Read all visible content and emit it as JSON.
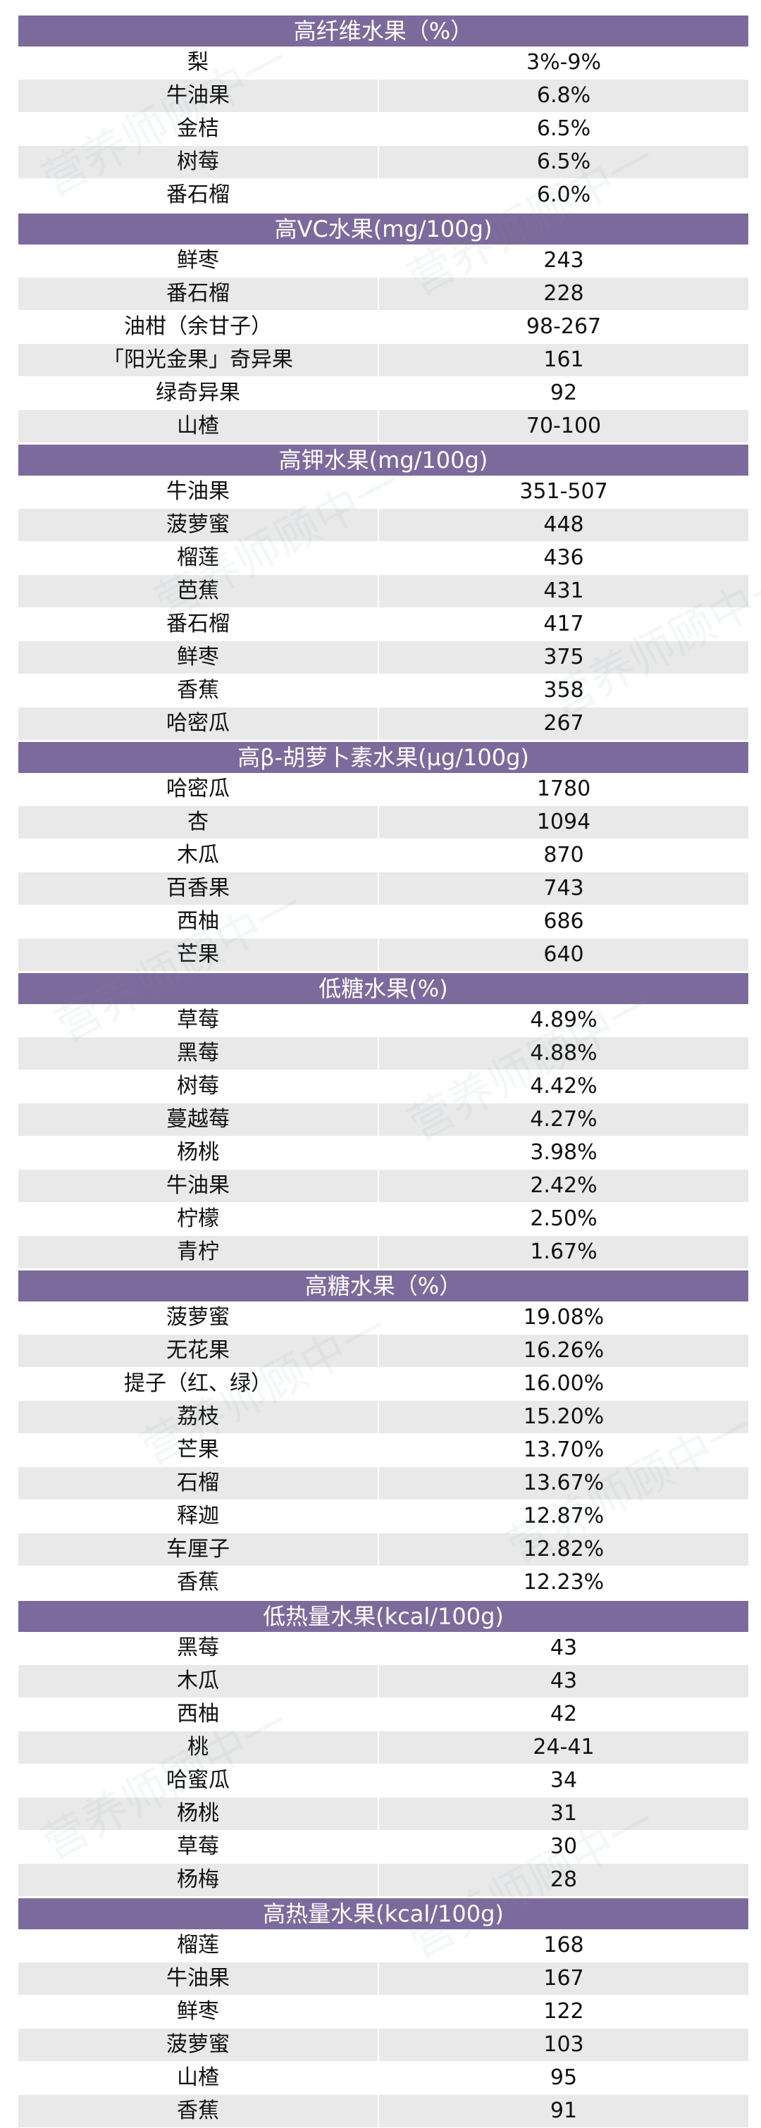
{
  "sections": [
    {
      "title": "高纤维水果（%）",
      "rows": [
        {
          "name": "梨",
          "value": "3%-9%"
        },
        {
          "name": "牛油果",
          "value": "6.8%"
        },
        {
          "name": "金桔",
          "value": "6.5%"
        },
        {
          "name": "树莓",
          "value": "6.5%"
        },
        {
          "name": "番石榴",
          "value": "6.0%"
        }
      ]
    },
    {
      "title": "高VC水果(mg/100g)",
      "rows": [
        {
          "name": "鲜枣",
          "value": "243"
        },
        {
          "name": "番石榴",
          "value": "228"
        },
        {
          "name": "油柑（余甘子）",
          "value": "98-267"
        },
        {
          "name": "「阳光金果」奇异果",
          "value": "161"
        },
        {
          "name": "绿奇异果",
          "value": "92"
        },
        {
          "name": "山楂",
          "value": "70-100"
        }
      ]
    },
    {
      "title": "高钾水果(mg/100g)",
      "rows": [
        {
          "name": "牛油果",
          "value": "351-507"
        },
        {
          "name": "菠萝蜜",
          "value": "448"
        },
        {
          "name": "榴莲",
          "value": "436"
        },
        {
          "name": "芭蕉",
          "value": "431"
        },
        {
          "name": "番石榴",
          "value": "417"
        },
        {
          "name": "鲜枣",
          "value": "375"
        },
        {
          "name": "香蕉",
          "value": "358"
        },
        {
          "name": "哈密瓜",
          "value": "267"
        }
      ]
    },
    {
      "title": "高β-胡萝卜素水果(μg/100g)",
      "rows": [
        {
          "name": "哈密瓜",
          "value": "1780"
        },
        {
          "name": "杏",
          "value": "1094"
        },
        {
          "name": "木瓜",
          "value": "870"
        },
        {
          "name": "百香果",
          "value": "743"
        },
        {
          "name": "西柚",
          "value": "686"
        },
        {
          "name": "芒果",
          "value": "640"
        }
      ]
    },
    {
      "title": "低糖水果(%)",
      "rows": [
        {
          "name": "草莓",
          "value": "4.89%"
        },
        {
          "name": "黑莓",
          "value": "4.88%"
        },
        {
          "name": "树莓",
          "value": "4.42%"
        },
        {
          "name": "蔓越莓",
          "value": "4.27%"
        },
        {
          "name": "杨桃",
          "value": "3.98%"
        },
        {
          "name": "牛油果",
          "value": "2.42%"
        },
        {
          "name": "柠檬",
          "value": "2.50%"
        },
        {
          "name": "青柠",
          "value": "1.67%"
        }
      ]
    },
    {
      "title": "高糖水果（%）",
      "rows": [
        {
          "name": "菠萝蜜",
          "value": "19.08%"
        },
        {
          "name": "无花果",
          "value": "16.26%"
        },
        {
          "name": "提子（红、绿）",
          "value": "16.00%"
        },
        {
          "name": "荔枝",
          "value": "15.20%"
        },
        {
          "name": "芒果",
          "value": "13.70%"
        },
        {
          "name": "石榴",
          "value": "13.67%"
        },
        {
          "name": "释迦",
          "value": "12.87%"
        },
        {
          "name": "车厘子",
          "value": "12.82%"
        },
        {
          "name": "香蕉",
          "value": "12.23%"
        }
      ]
    },
    {
      "title": "低热量水果(kcal/100g)",
      "rows": [
        {
          "name": "黑莓",
          "value": "43"
        },
        {
          "name": "木瓜",
          "value": "43"
        },
        {
          "name": "西柚",
          "value": "42"
        },
        {
          "name": "桃",
          "value": "24-41"
        },
        {
          "name": "哈蜜瓜",
          "value": "34"
        },
        {
          "name": "杨桃",
          "value": "31"
        },
        {
          "name": "草莓",
          "value": "30"
        },
        {
          "name": "杨梅",
          "value": "28"
        }
      ]
    },
    {
      "title": "高热量水果(kcal/100g)",
      "rows": [
        {
          "name": "榴莲",
          "value": "168"
        },
        {
          "name": "牛油果",
          "value": "167"
        },
        {
          "name": "鲜枣",
          "value": "122"
        },
        {
          "name": "菠萝蜜",
          "value": "103"
        },
        {
          "name": "山楂",
          "value": "95"
        },
        {
          "name": "香蕉",
          "value": "91"
        }
      ]
    }
  ],
  "watermark": "营养师顾中一",
  "colors": {
    "header_bg": "#7d6a9c",
    "header_text": "#ffffff",
    "alt_row_bg": "#e9e9ea",
    "row_bg": "#ffffff",
    "text": "#111111"
  }
}
